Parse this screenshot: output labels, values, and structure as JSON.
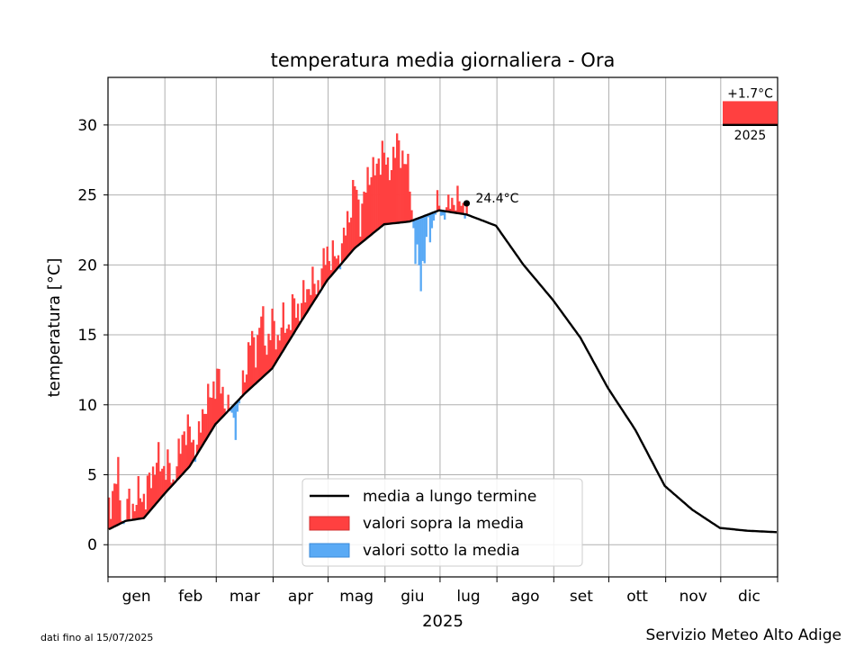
{
  "chart_data": {
    "type": "bar",
    "title": "temperatura media giornaliera - Ora",
    "xlabel": "2025",
    "ylabel": "temperatura [°C]",
    "ylim": [
      -2.3,
      33.4
    ],
    "yticks": [
      0,
      5,
      10,
      15,
      20,
      25,
      30
    ],
    "months": [
      "gen",
      "feb",
      "mar",
      "apr",
      "mag",
      "giu",
      "lug",
      "ago",
      "set",
      "ott",
      "nov",
      "dic"
    ],
    "month_days": [
      31,
      28,
      31,
      30,
      31,
      30,
      31,
      31,
      30,
      31,
      30,
      31
    ],
    "grid": true,
    "colors": {
      "above": "#ff4040",
      "below": "#5aaaf5",
      "mean": "#000000"
    },
    "legend": {
      "position": "bottom-center",
      "entries": [
        {
          "label": "media a lungo termine",
          "kind": "line"
        },
        {
          "label": "valori sopra la media",
          "kind": "above"
        },
        {
          "label": "valori sotto la media",
          "kind": "below"
        }
      ]
    },
    "longterm_mean_knots": {
      "day": [
        1,
        10,
        20,
        31,
        45,
        59,
        75,
        90,
        105,
        120,
        135,
        151,
        165,
        181,
        196,
        212,
        227,
        243,
        258,
        273,
        288,
        304,
        319,
        334,
        349,
        365
      ],
      "value": [
        1.1,
        1.7,
        1.9,
        3.6,
        5.6,
        8.6,
        10.8,
        12.6,
        15.8,
        18.9,
        21.2,
        22.9,
        23.1,
        23.9,
        23.6,
        22.8,
        20.0,
        17.5,
        14.8,
        11.2,
        8.2,
        4.2,
        2.5,
        1.2,
        1.0,
        0.9
      ]
    },
    "daily_anomaly_knots": {
      "day": [
        1,
        3,
        6,
        9,
        12,
        15,
        18,
        21,
        24,
        27,
        30,
        33,
        36,
        39,
        42,
        45,
        48,
        51,
        54,
        57,
        60,
        63,
        66,
        69,
        72,
        75,
        78,
        81,
        84,
        87,
        90,
        93,
        96,
        99,
        102,
        105,
        108,
        111,
        114,
        117,
        120,
        123,
        126,
        129,
        132,
        135,
        138,
        141,
        144,
        147,
        150,
        153,
        156,
        159,
        162,
        165,
        168,
        171,
        174,
        177,
        180,
        183,
        186,
        189,
        192,
        195
      ],
      "value": [
        1.5,
        2.6,
        3.5,
        -0.4,
        1.5,
        0.8,
        2.0,
        1.3,
        2.5,
        3.0,
        2.2,
        1.8,
        0.2,
        1.5,
        3.2,
        2.5,
        0.3,
        1.5,
        3.0,
        2.2,
        3.8,
        1.2,
        0.6,
        -1.5,
        -0.5,
        1.5,
        3.5,
        2.5,
        4.5,
        2.0,
        3.2,
        1.5,
        2.0,
        1.2,
        2.0,
        1.0,
        1.5,
        1.8,
        0.5,
        1.3,
        2.0,
        1.2,
        0.6,
        1.5,
        3.0,
        4.5,
        2.0,
        3.5,
        5.0,
        4.0,
        5.8,
        3.5,
        5.0,
        5.5,
        4.5,
        3.0,
        -2.5,
        -4.3,
        -1.8,
        -1.0,
        0.6,
        -0.5,
        0.5,
        1.0,
        0.8,
        0.5
      ]
    },
    "last_value": {
      "label": "24.4°C",
      "day": 196,
      "value": 24.4
    },
    "year_anomaly": {
      "label": "+1.7°C",
      "year": "2025",
      "value": 1.7,
      "base": 30
    }
  },
  "footer": {
    "left": "dati fino al 15/07/2025",
    "right": "Servizio Meteo Alto Adige"
  }
}
